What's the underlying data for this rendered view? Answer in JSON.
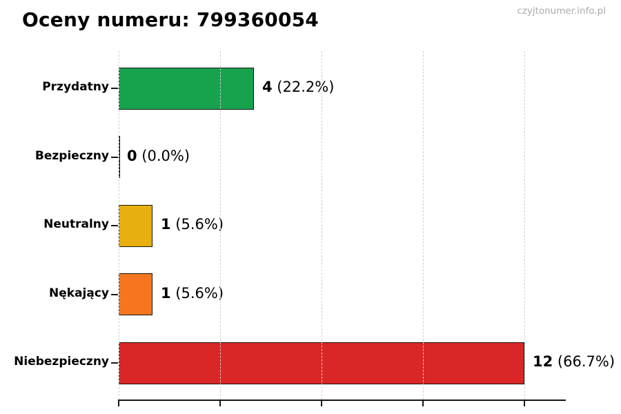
{
  "page": {
    "title": "Oceny numeru: 799360054",
    "watermark": "czyjtonumer.info.pl"
  },
  "chart_data": {
    "type": "bar",
    "orientation": "horizontal",
    "title": "Oceny numeru: 799360054",
    "categories": [
      "Przydatny",
      "Bezpieczny",
      "Neutralny",
      "Nękający",
      "Niebezpieczny"
    ],
    "values": [
      4,
      0,
      1,
      1,
      12
    ],
    "rows": [
      {
        "label": "Przydatny",
        "value": 4,
        "percent": "(22.2%)",
        "color": "#17a24e"
      },
      {
        "label": "Bezpieczny",
        "value": 0,
        "percent": "(0.0%)",
        "color": null
      },
      {
        "label": "Neutralny",
        "value": 1,
        "percent": "(5.6%)",
        "color": "#e8b00e"
      },
      {
        "label": "Nękający",
        "value": 1,
        "percent": "(5.6%)",
        "color": "#f5761f"
      },
      {
        "label": "Niebezpieczny",
        "value": 12,
        "percent": "(66.7%)",
        "color": "#da2626"
      }
    ],
    "xlim": [
      0,
      13.2
    ],
    "x_ticks": [
      0,
      3,
      6,
      9,
      12
    ],
    "x_tick_labels_visible": false,
    "grid": "vertical-dashed",
    "legend": false,
    "bar_border_color": "#141414",
    "gridline_color": "#cfcfcf"
  }
}
